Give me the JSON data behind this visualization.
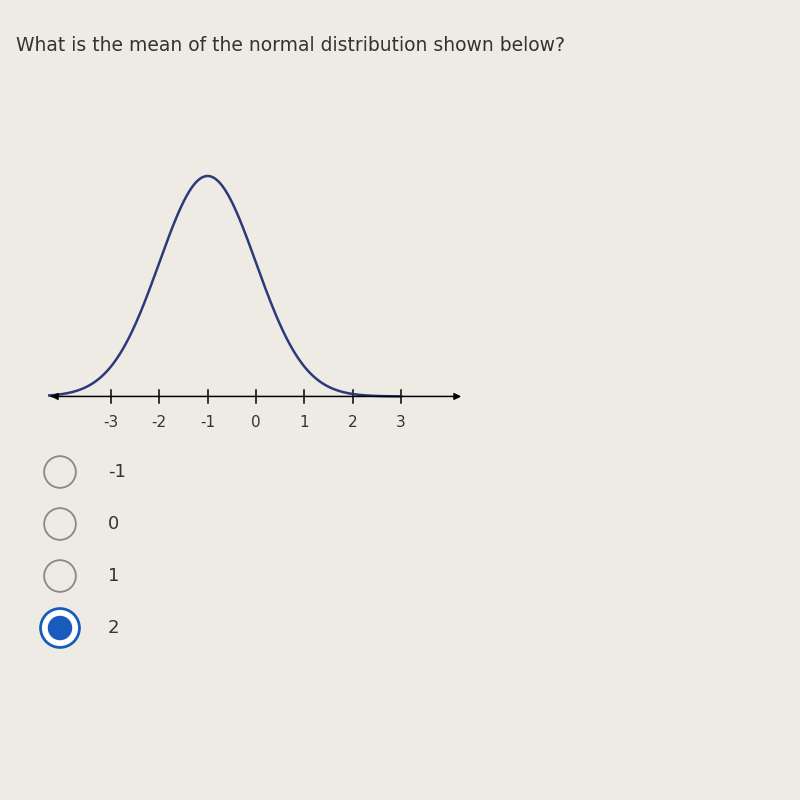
{
  "title": "What is the mean of the normal distribution shown below?",
  "title_fontsize": 13.5,
  "curve_mean": -1,
  "curve_std": 1.0,
  "curve_color": "#2b3a7a",
  "curve_linewidth": 1.8,
  "xmin": -4.3,
  "xmax": 4.3,
  "tick_positions": [
    -3,
    -2,
    -1,
    0,
    1,
    2,
    3
  ],
  "tick_labels": [
    "-3",
    "-2",
    "-1",
    "0",
    "1",
    "2",
    "3"
  ],
  "background_color": "#eeebe5",
  "choices": [
    "-1",
    "0",
    "1",
    "2"
  ],
  "selected_index": 3,
  "selected_fill_color": "#1a5bbf",
  "selected_ring_color": "#1a5bbf",
  "unselected_color": "#eeebe5",
  "circle_edge_color": "#888888",
  "text_color": "#333333",
  "choice_fontsize": 13
}
